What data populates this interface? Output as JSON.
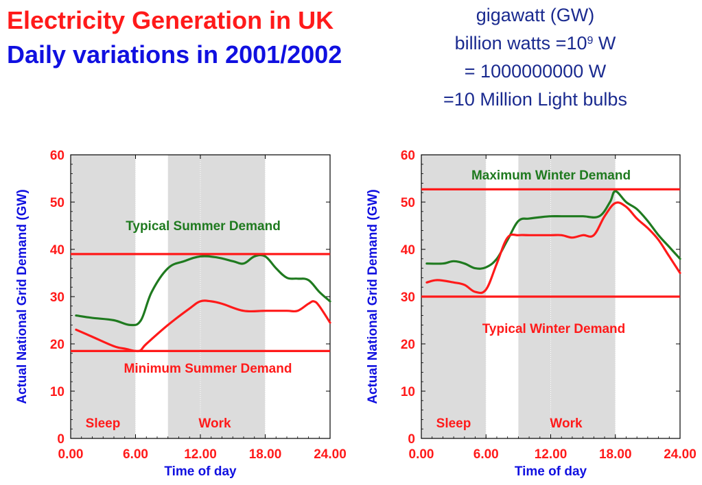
{
  "header": {
    "title_line1": "Electricity Generation in UK",
    "title_line2": "Daily variations in 2001/2002"
  },
  "note": {
    "line1": "gigawatt (GW)",
    "line2_prefix": "billion watts =10",
    "line2_exp": "9",
    "line2_suffix": " W",
    "line3": "= 1000000000 W",
    "line4": "=10 Million Light bulbs"
  },
  "colors": {
    "red": "#ff1a1a",
    "green": "#1f7a1f",
    "blue": "#1010e0",
    "shade": "#dcdcdc"
  },
  "chart_data": [
    {
      "type": "line",
      "xlabel": "Time of day",
      "ylabel": "Actual National Grid Demand (GW)",
      "xlim": [
        0,
        24
      ],
      "ylim": [
        0,
        60
      ],
      "xticks": [
        "0.00",
        "6.00",
        "12.00",
        "18.00",
        "24.00"
      ],
      "yticks": [
        "0",
        "10",
        "20",
        "30",
        "40",
        "50",
        "60"
      ],
      "shaded_regions": [
        {
          "label": "Sleep",
          "x": [
            0,
            6
          ]
        },
        {
          "label": "Work",
          "x": [
            9,
            18
          ]
        }
      ],
      "hlines": [
        {
          "label": "Typical Summer Demand",
          "y": 39,
          "label_color": "green"
        },
        {
          "label": "Minimum Summer Demand",
          "y": 18.5,
          "label_color": "red"
        }
      ],
      "series": [
        {
          "color": "green",
          "x": [
            0.5,
            2,
            4,
            5.5,
            6.5,
            7.5,
            9,
            10.5,
            12,
            13.5,
            15,
            16,
            17,
            18,
            19,
            20,
            21,
            22,
            23,
            24
          ],
          "y": [
            26,
            25.5,
            25,
            24,
            25,
            31,
            36,
            37.5,
            38.5,
            38.3,
            37.5,
            37,
            38.5,
            38.5,
            36,
            34,
            33.8,
            33.5,
            31,
            29
          ]
        },
        {
          "color": "red",
          "x": [
            0.5,
            2,
            4,
            5,
            6.3,
            7,
            9,
            11,
            12,
            13,
            14,
            16,
            18,
            20,
            21,
            22,
            22.5,
            23,
            24
          ],
          "y": [
            23,
            21.5,
            19.5,
            19,
            18.5,
            20,
            24,
            27.5,
            29,
            29,
            28.5,
            27,
            27,
            27,
            27,
            28.5,
            29,
            28,
            24.5
          ]
        }
      ]
    },
    {
      "type": "line",
      "xlabel": "Time of day",
      "ylabel": "Actual National Grid Demand (GW)",
      "xlim": [
        0,
        24
      ],
      "ylim": [
        0,
        60
      ],
      "xticks": [
        "0.00",
        "6.00",
        "12.00",
        "18.00",
        "24.00"
      ],
      "yticks": [
        "0",
        "10",
        "20",
        "30",
        "40",
        "50",
        "60"
      ],
      "shaded_regions": [
        {
          "label": "Sleep",
          "x": [
            0,
            6
          ]
        },
        {
          "label": "Work",
          "x": [
            9,
            18
          ]
        }
      ],
      "hlines": [
        {
          "label": "Maximum Winter Demand",
          "y": 52.7,
          "label_color": "green"
        },
        {
          "label": "Typical Winter Demand",
          "y": 30,
          "label_color": "red"
        }
      ],
      "series": [
        {
          "color": "green",
          "x": [
            0.5,
            2,
            3,
            4,
            5,
            6,
            7,
            8,
            9,
            10,
            11,
            12,
            13,
            14,
            15,
            16.5,
            17.5,
            18,
            19,
            20,
            21,
            22,
            23,
            24
          ],
          "y": [
            37,
            37,
            37.5,
            37,
            36,
            36.2,
            38,
            42,
            46,
            46.5,
            46.8,
            47,
            47,
            47,
            47,
            47,
            50,
            52.3,
            50,
            48.5,
            46,
            43,
            40.5,
            38
          ]
        },
        {
          "color": "red",
          "x": [
            0.5,
            1.5,
            3,
            4,
            5,
            6,
            7,
            8,
            9,
            10,
            12,
            13,
            14,
            15,
            16,
            17,
            18,
            19,
            20,
            21,
            22,
            23,
            24
          ],
          "y": [
            33,
            33.5,
            33,
            32.5,
            31,
            31.5,
            37,
            42.5,
            43,
            43,
            43,
            43,
            42.5,
            43,
            43,
            47,
            49.8,
            49,
            46.5,
            44.5,
            42,
            38.5,
            35
          ]
        }
      ]
    }
  ]
}
